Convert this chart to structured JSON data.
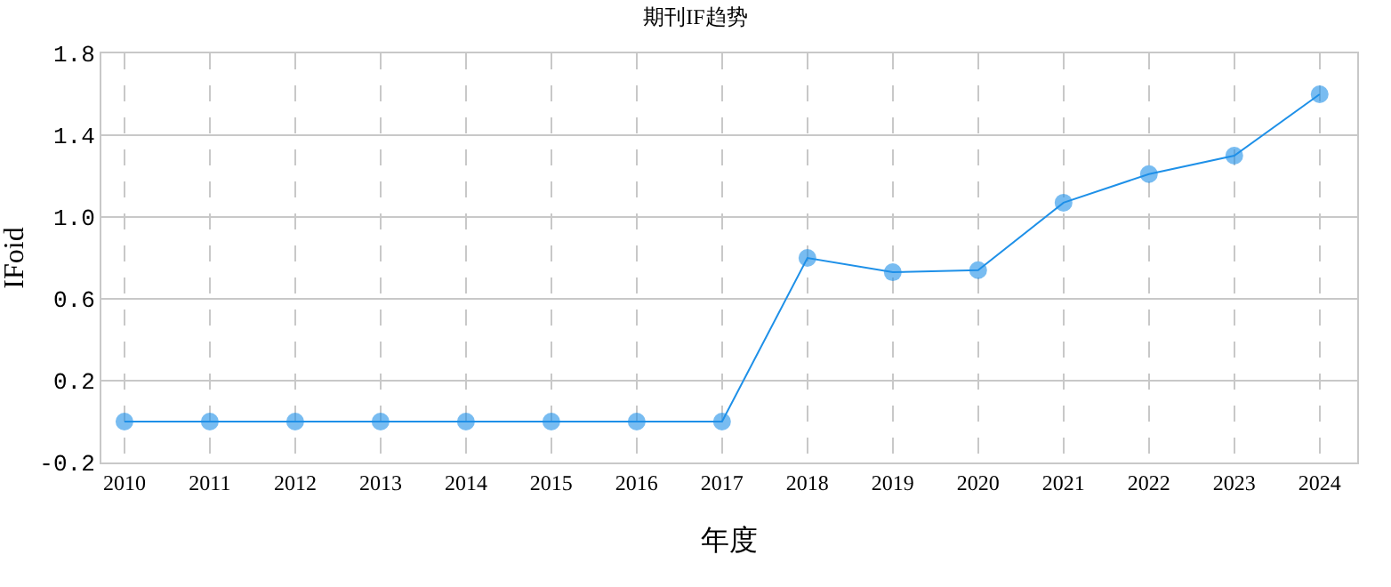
{
  "chart_data": {
    "type": "line",
    "title": "期刊IF趋势",
    "xlabel": "年度",
    "ylabel": "IFoid",
    "categories": [
      "2010",
      "2011",
      "2012",
      "2013",
      "2014",
      "2015",
      "2016",
      "2017",
      "2018",
      "2019",
      "2020",
      "2021",
      "2022",
      "2023",
      "2024"
    ],
    "series": [
      {
        "color": "#1e90e8",
        "values": [
          0,
          0,
          0,
          0,
          0,
          0,
          0,
          0,
          0.8,
          0.73,
          0.74,
          1.07,
          1.21,
          1.3,
          1.6
        ]
      }
    ],
    "ylim": [
      -0.2,
      1.8
    ],
    "yticks": [
      {
        "value": -0.2,
        "label": "-0.2"
      },
      {
        "value": 0.2,
        "label": "0.2"
      },
      {
        "value": 0.6,
        "label": "0.6"
      },
      {
        "value": 1,
        "label": "1.0"
      },
      {
        "value": 1.4,
        "label": "1.4"
      },
      {
        "value": 1.8,
        "label": "1.8"
      }
    ],
    "grid": true,
    "marker": "circle",
    "line_style": "solid"
  }
}
